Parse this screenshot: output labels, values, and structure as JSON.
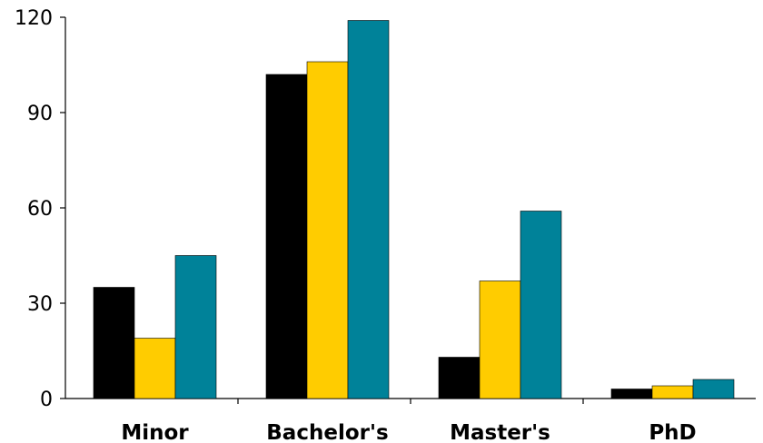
{
  "chart_data": {
    "type": "bar",
    "title": "",
    "xlabel": "",
    "ylabel": "",
    "categories": [
      "Minor",
      "Bachelor's",
      "Master's",
      "PhD"
    ],
    "series": [
      {
        "values": [
          35,
          102,
          13,
          3
        ],
        "color": "#000000"
      },
      {
        "values": [
          19,
          106,
          37,
          4
        ],
        "color": "#ffcc00"
      },
      {
        "values": [
          45,
          119,
          59,
          6
        ],
        "color": "#008299"
      }
    ],
    "ylim": [
      0,
      120
    ],
    "yticks": [
      0,
      30,
      60,
      90,
      120
    ],
    "grid": false,
    "legend": "none"
  }
}
